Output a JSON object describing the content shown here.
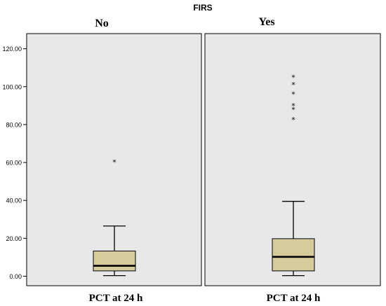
{
  "chart_data": {
    "type": "boxplot",
    "title": "FIRS",
    "ylim": [
      -5,
      128
    ],
    "yticks": [
      0,
      20,
      40,
      60,
      80,
      100,
      120
    ],
    "ytick_labels": [
      "0.00",
      "20.00",
      "40.00",
      "60.00",
      "80.00",
      "100.00",
      "120.00"
    ],
    "grid": false,
    "colors": {
      "panel_bg": "#e8e8e8",
      "box_fill": "#d6cc9b",
      "stroke": "#000000"
    },
    "panels": [
      {
        "group": "No",
        "xlabel": "PCT at 24 h",
        "box": {
          "whisker_low": 0.3,
          "q1": 2.8,
          "median": 5.5,
          "q3": 13.3,
          "whisker_high": 26.5
        },
        "outliers": [
          60.2
        ],
        "outlier_marker": "*"
      },
      {
        "group": "Yes",
        "xlabel": "PCT at 24 h",
        "box": {
          "whisker_low": 0.3,
          "q1": 2.8,
          "median": 10.2,
          "q3": 19.8,
          "whisker_high": 39.5
        },
        "outliers": [
          105,
          101,
          96,
          90,
          88,
          82.5
        ],
        "outlier_marker": "*"
      }
    ]
  }
}
